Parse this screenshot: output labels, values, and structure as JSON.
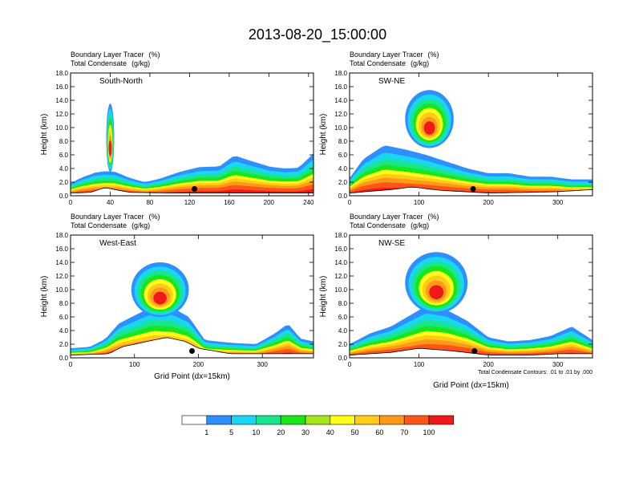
{
  "figure": {
    "title": "2013-08-20_15:00:00",
    "colorbar": {
      "levels": [
        "1",
        "5",
        "10",
        "20",
        "30",
        "40",
        "50",
        "60",
        "70",
        "100"
      ],
      "colors": [
        "#ffffff",
        "#2e8fff",
        "#19d6f2",
        "#19e68c",
        "#19e619",
        "#a6e619",
        "#ffff19",
        "#ffcc19",
        "#ff9919",
        "#ff5519",
        "#f01919"
      ]
    }
  },
  "chart_data": [
    {
      "type": "heatmap",
      "fill_label": "Boundary Layer Tracer",
      "fill_units": "(%)",
      "contour_label": "Total Condensate",
      "contour_units": "(g/kg)",
      "inset_label": "South-North",
      "ylabel": "Height (km)",
      "xlabel": "",
      "xlim": [
        0,
        245
      ],
      "ylim": [
        0,
        18
      ],
      "x_ticks": [
        "0",
        "40",
        "80",
        "120",
        "160",
        "200",
        "240"
      ],
      "y_ticks": [
        "0.0",
        "2.0",
        "4.0",
        "6.0",
        "8.0",
        "10.0",
        "12.0",
        "14.0",
        "16.0",
        "18.0"
      ],
      "layer_top_km": [
        [
          0,
          1.8
        ],
        [
          10,
          2.6
        ],
        [
          25,
          3.4
        ],
        [
          35,
          3.6
        ],
        [
          45,
          3.5
        ],
        [
          60,
          2.6
        ],
        [
          75,
          2.0
        ],
        [
          90,
          2.5
        ],
        [
          110,
          3.5
        ],
        [
          130,
          4.2
        ],
        [
          150,
          4.3
        ],
        [
          165,
          5.9
        ],
        [
          180,
          5.2
        ],
        [
          200,
          4.3
        ],
        [
          215,
          4.0
        ],
        [
          230,
          4.1
        ],
        [
          245,
          6.2
        ]
      ],
      "plume": [
        {
          "x": 40,
          "width": 8,
          "top_km": 13.5,
          "base_km": 3.5
        }
      ],
      "terrain_km": [
        [
          0,
          0.4
        ],
        [
          20,
          0.5
        ],
        [
          35,
          1.2
        ],
        [
          45,
          0.9
        ],
        [
          60,
          0.5
        ],
        [
          100,
          0.4
        ],
        [
          160,
          0.4
        ],
        [
          245,
          0.4
        ]
      ],
      "marker": {
        "x": 125,
        "y": 1.0
      }
    },
    {
      "type": "heatmap",
      "fill_label": "Boundary Layer Tracer",
      "fill_units": "(%)",
      "contour_label": "Total Condensate",
      "contour_units": "(g/kg)",
      "inset_label": "SW-NE",
      "ylabel": "Height (km)",
      "xlabel": "",
      "xlim": [
        0,
        350
      ],
      "ylim": [
        0,
        18
      ],
      "x_ticks": [
        "0",
        "100",
        "200",
        "300"
      ],
      "y_ticks": [
        "0.0",
        "2.0",
        "4.0",
        "6.0",
        "8.0",
        "10.0",
        "12.0",
        "14.0",
        "16.0",
        "18.0"
      ],
      "layer_top_km": [
        [
          0,
          2.6
        ],
        [
          20,
          5.4
        ],
        [
          50,
          7.4
        ],
        [
          80,
          6.8
        ],
        [
          110,
          6.0
        ],
        [
          140,
          5.0
        ],
        [
          170,
          4.0
        ],
        [
          200,
          3.3
        ],
        [
          230,
          3.3
        ],
        [
          260,
          2.8
        ],
        [
          290,
          2.8
        ],
        [
          320,
          2.4
        ],
        [
          350,
          2.4
        ]
      ],
      "plume": [
        {
          "x": 115,
          "width": 70,
          "top_km": 15.5,
          "base_km": 7.0
        }
      ],
      "terrain_km": [
        [
          0,
          0.4
        ],
        [
          60,
          0.9
        ],
        [
          90,
          1.3
        ],
        [
          130,
          0.8
        ],
        [
          200,
          0.4
        ],
        [
          260,
          0.5
        ],
        [
          300,
          0.6
        ],
        [
          350,
          0.9
        ]
      ],
      "marker": {
        "x": 178,
        "y": 1.0
      }
    },
    {
      "type": "heatmap",
      "fill_label": "Boundary Layer Tracer",
      "fill_units": "(%)",
      "contour_label": "Total Condensate",
      "contour_units": "(g/kg)",
      "inset_label": "West-East",
      "ylabel": "Height (km)",
      "xlabel": "Grid Point (dx=15km)",
      "xlim": [
        0,
        380
      ],
      "ylim": [
        0,
        18
      ],
      "x_ticks": [
        "0",
        "100",
        "200",
        "300"
      ],
      "y_ticks": [
        "0.0",
        "2.0",
        "4.0",
        "6.0",
        "8.0",
        "10.0",
        "12.0",
        "14.0",
        "16.0",
        "18.0"
      ],
      "layer_top_km": [
        [
          0,
          1.4
        ],
        [
          30,
          1.6
        ],
        [
          55,
          2.8
        ],
        [
          75,
          5.0
        ],
        [
          100,
          6.2
        ],
        [
          130,
          7.6
        ],
        [
          160,
          7.3
        ],
        [
          185,
          6.0
        ],
        [
          210,
          2.6
        ],
        [
          250,
          2.2
        ],
        [
          290,
          2.0
        ],
        [
          320,
          3.6
        ],
        [
          340,
          5.0
        ],
        [
          360,
          2.8
        ],
        [
          380,
          2.4
        ]
      ],
      "plume": [
        {
          "x": 140,
          "width": 90,
          "top_km": 14.0,
          "base_km": 6.0
        }
      ],
      "terrain_km": [
        [
          0,
          0.4
        ],
        [
          60,
          0.6
        ],
        [
          80,
          1.6
        ],
        [
          110,
          2.2
        ],
        [
          150,
          3.0
        ],
        [
          180,
          2.4
        ],
        [
          200,
          1.4
        ],
        [
          250,
          0.6
        ],
        [
          320,
          0.6
        ],
        [
          380,
          0.6
        ]
      ],
      "marker": {
        "x": 190,
        "y": 1.0
      }
    },
    {
      "type": "heatmap",
      "fill_label": "Boundary Layer Tracer",
      "fill_units": "(%)",
      "contour_label": "Total Condensate",
      "contour_units": "(g/kg)",
      "inset_label": "NW-SE",
      "ylabel": "Height (km)",
      "xlabel": "Grid Point (dx=15km)",
      "xlim": [
        0,
        350
      ],
      "ylim": [
        0,
        18
      ],
      "x_ticks": [
        "0",
        "100",
        "200",
        "300"
      ],
      "y_ticks": [
        "0.0",
        "2.0",
        "4.0",
        "6.0",
        "8.0",
        "10.0",
        "12.0",
        "14.0",
        "16.0",
        "18.0"
      ],
      "layer_top_km": [
        [
          0,
          2.0
        ],
        [
          30,
          3.6
        ],
        [
          60,
          4.6
        ],
        [
          90,
          6.4
        ],
        [
          110,
          7.6
        ],
        [
          140,
          7.0
        ],
        [
          170,
          5.4
        ],
        [
          200,
          3.0
        ],
        [
          230,
          2.4
        ],
        [
          260,
          2.6
        ],
        [
          290,
          3.2
        ],
        [
          320,
          4.6
        ],
        [
          350,
          2.6
        ]
      ],
      "plume": [
        {
          "x": 125,
          "width": 90,
          "top_km": 15.5,
          "base_km": 6.5
        }
      ],
      "terrain_km": [
        [
          0,
          0.4
        ],
        [
          60,
          0.8
        ],
        [
          100,
          1.4
        ],
        [
          150,
          1.0
        ],
        [
          200,
          0.4
        ],
        [
          260,
          0.4
        ],
        [
          300,
          0.6
        ],
        [
          350,
          0.6
        ]
      ],
      "marker": {
        "x": 180,
        "y": 1.0
      },
      "footnote": "Total Condensate Contours: .01 to .01 by .000"
    }
  ]
}
